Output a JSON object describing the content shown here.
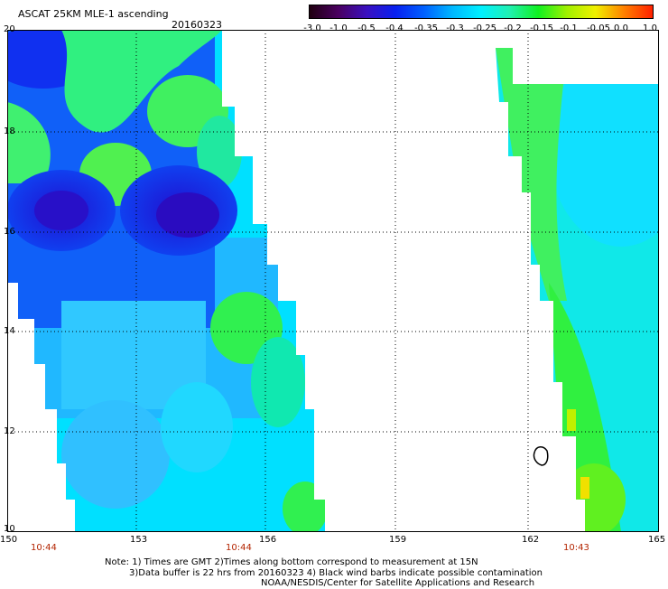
{
  "header": {
    "title": "ASCAT 25KM MLE-1 ascending",
    "date": "20160323"
  },
  "colorbar": {
    "labels": [
      "-3.0",
      "-1.0",
      "-0.5",
      "-0.4",
      "-0.35",
      "-0.3",
      "-0.25",
      "-0.2",
      "-0.15",
      "-0.1",
      "-0.05",
      "0.0",
      "1.0"
    ],
    "colors": [
      "#200010",
      "#4a0060",
      "#3a10c0",
      "#0820f0",
      "#0060ff",
      "#00b8ff",
      "#00f0ff",
      "#20f0b0",
      "#10f020",
      "#a0f000",
      "#f0f000",
      "#ff8000",
      "#ff2000"
    ]
  },
  "axes": {
    "lat_labels": [
      "20",
      "18",
      "16",
      "14",
      "12",
      "10"
    ],
    "lon_labels": [
      "150",
      "153",
      "156",
      "159",
      "162",
      "165"
    ]
  },
  "times": [
    "10:44",
    "10:44",
    "10:43"
  ],
  "notes": {
    "line1": "Note: 1) Times are GMT 2)Times along bottom correspond to measurement at 15N",
    "line2": "3)Data buffer is 22 hrs from 20160323 4) Black wind barbs indicate possible contamination",
    "line3": "NOAA/NESDIS/Center for Satellite Applications and Research"
  },
  "map": {
    "lon_range": [
      150,
      165
    ],
    "lat_range": [
      10,
      20
    ]
  }
}
